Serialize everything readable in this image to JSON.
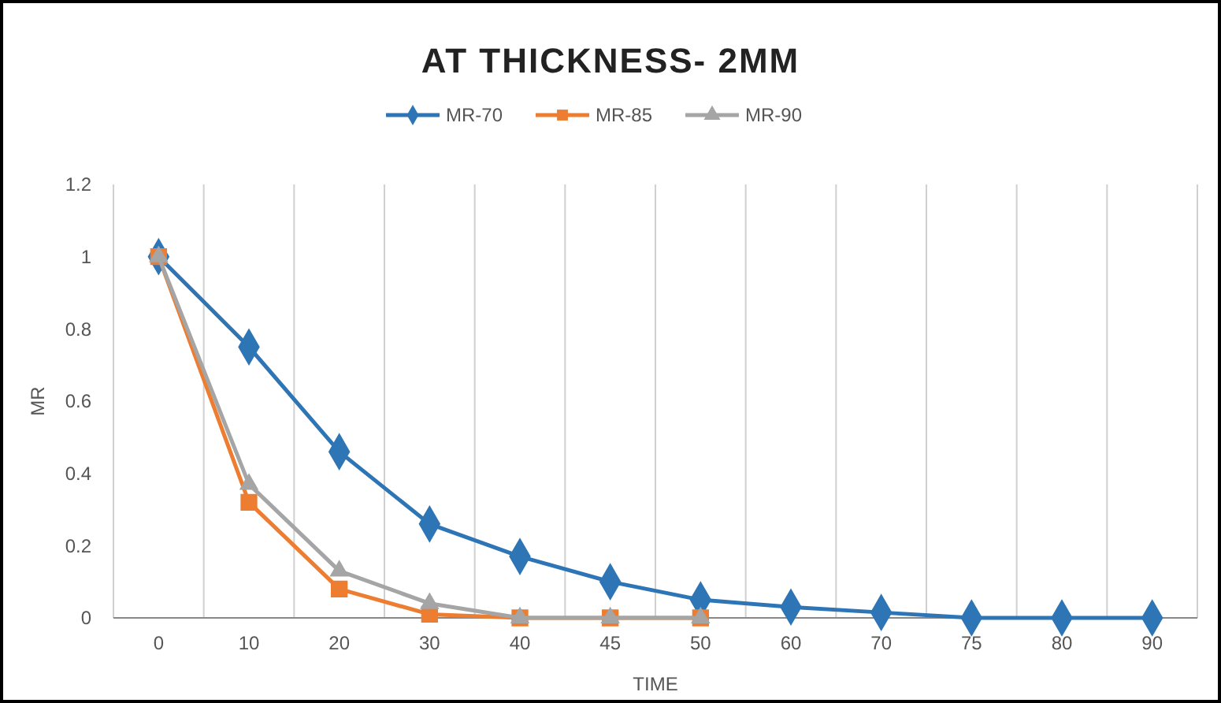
{
  "chart_data": {
    "type": "line",
    "title": "AT THICKNESS- 2MM",
    "xlabel": "TIME",
    "ylabel": "MR",
    "categories": [
      "0",
      "10",
      "20",
      "30",
      "40",
      "45",
      "50",
      "60",
      "70",
      "75",
      "80",
      "90"
    ],
    "series": [
      {
        "name": "MR-70",
        "color": "#2e75b6",
        "marker": "diamond",
        "values": [
          1,
          0.75,
          0.46,
          0.26,
          0.17,
          0.1,
          0.05,
          0.03,
          0.015,
          0,
          0,
          0
        ]
      },
      {
        "name": "MR-85",
        "color": "#ed7d31",
        "marker": "square",
        "values": [
          1,
          0.32,
          0.08,
          0.01,
          0,
          0,
          0,
          null,
          null,
          null,
          null,
          null
        ]
      },
      {
        "name": "MR-90",
        "color": "#a5a5a5",
        "marker": "triangle",
        "values": [
          1,
          0.37,
          0.13,
          0.04,
          0,
          0,
          0,
          null,
          null,
          null,
          null,
          null
        ]
      }
    ],
    "ylim": [
      0,
      1.2
    ],
    "yticks": [
      0,
      0.2,
      0.4,
      0.6,
      0.8,
      1,
      1.2
    ],
    "grid": "x",
    "legend": "top"
  }
}
